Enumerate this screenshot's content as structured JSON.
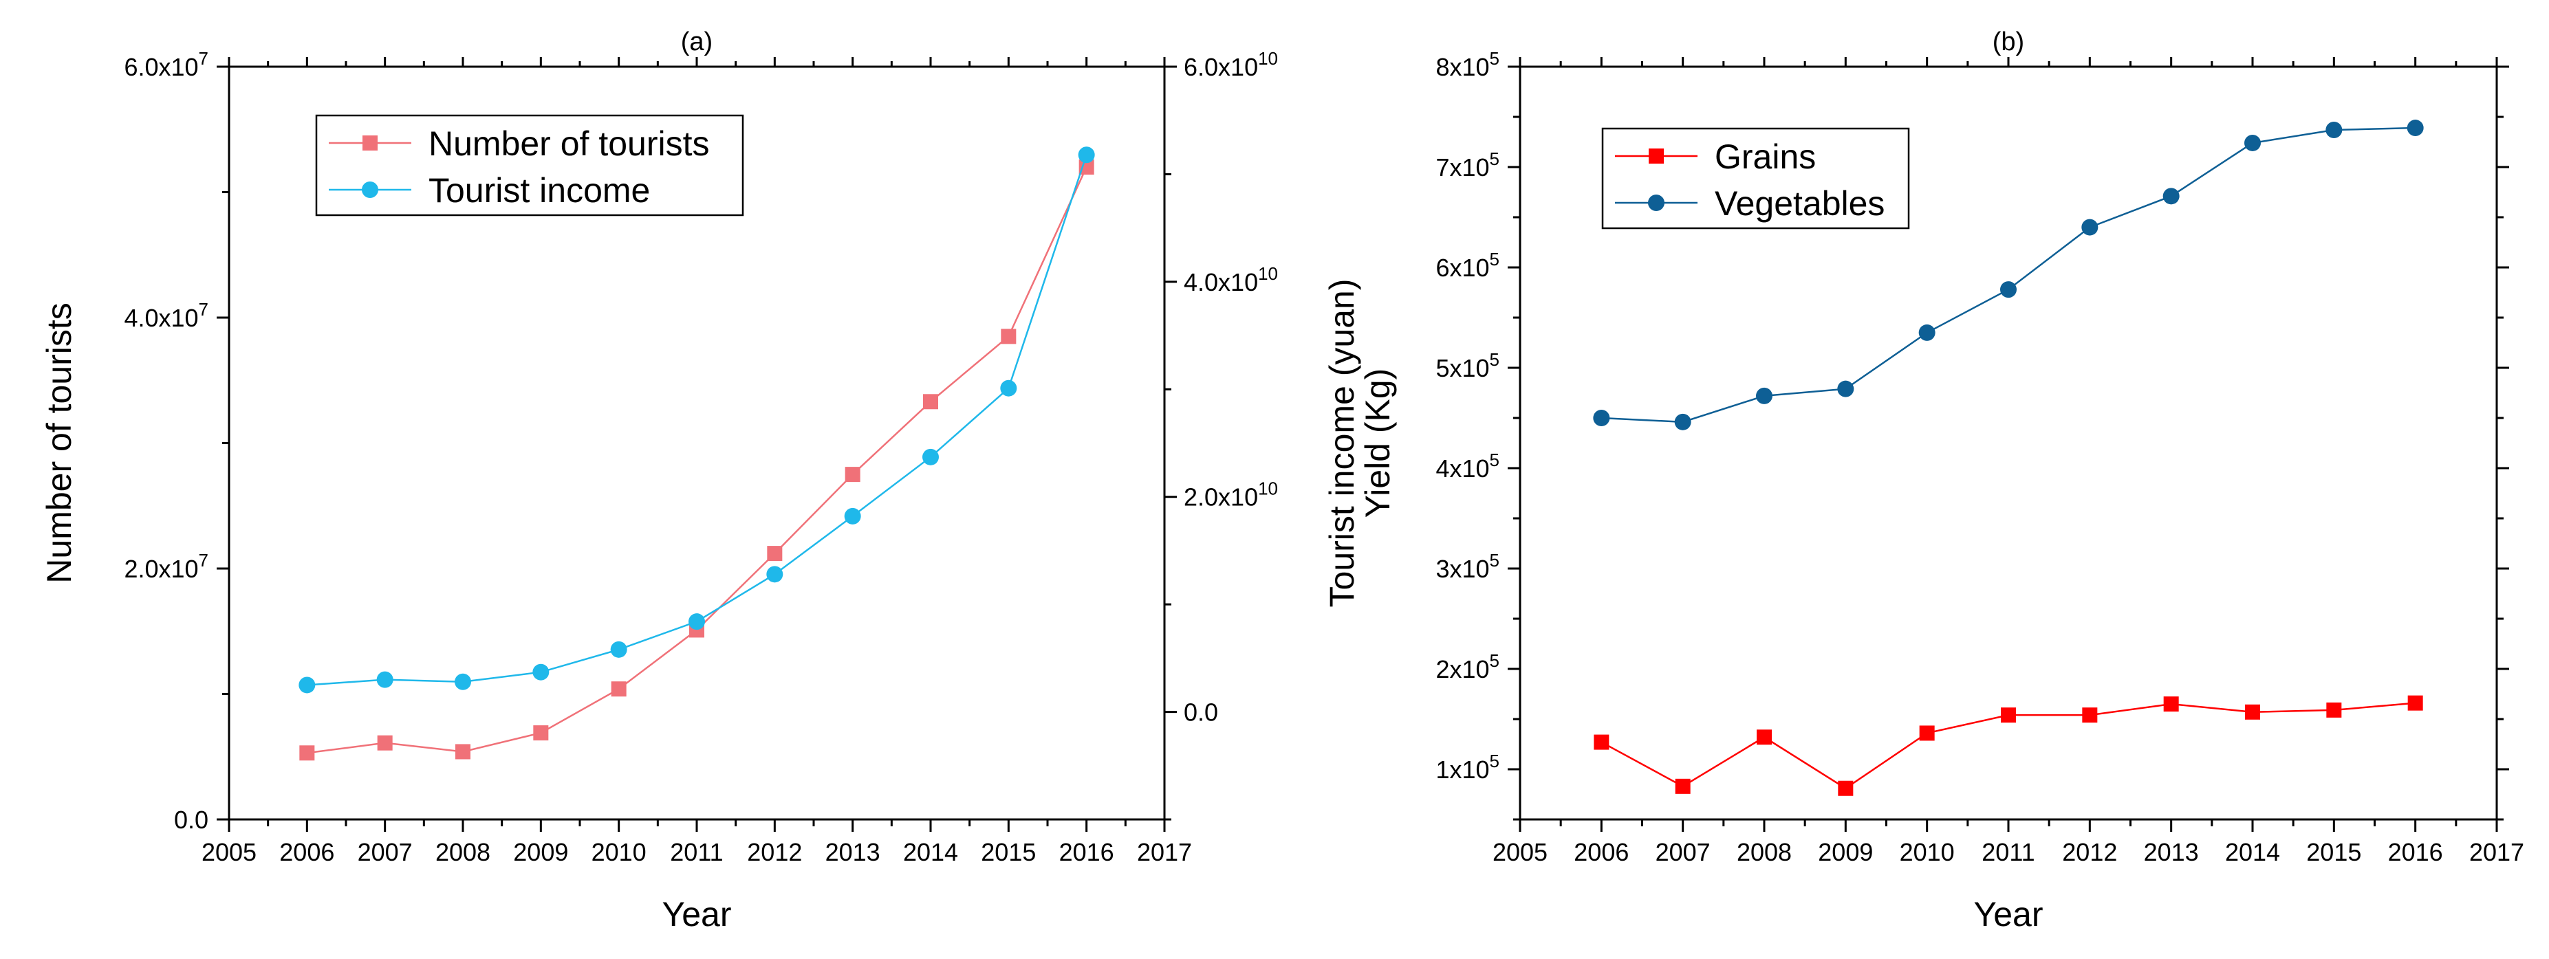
{
  "chart_data": [
    {
      "type": "line",
      "title": "(a)",
      "xlabel": "Year",
      "ylabel": "Number of tourists",
      "y2label": "Tourist income (yuan)",
      "xlim": [
        2005,
        2017
      ],
      "xticks": [
        2005,
        2006,
        2007,
        2008,
        2009,
        2010,
        2011,
        2012,
        2013,
        2014,
        2015,
        2016,
        2017
      ],
      "ylim": [
        0,
        60000000
      ],
      "yticks": [
        {
          "value": 0,
          "label": "0.0",
          "sup": ""
        },
        {
          "value": 20000000,
          "label": "2.0x10",
          "sup": "7"
        },
        {
          "value": 40000000,
          "label": "4.0x10",
          "sup": "7"
        },
        {
          "value": 60000000,
          "label": "6.0x10",
          "sup": "7"
        }
      ],
      "y2lim": [
        -10000000000,
        60000000000
      ],
      "y2ticks": [
        {
          "value": 0,
          "label": "0.0",
          "sup": ""
        },
        {
          "value": 20000000000,
          "label": "2.0x10",
          "sup": "10"
        },
        {
          "value": 40000000000,
          "label": "4.0x10",
          "sup": "10"
        },
        {
          "value": 60000000000,
          "label": "6.0x10",
          "sup": "10"
        }
      ],
      "grid": false,
      "legend_position": "top-left",
      "series": [
        {
          "name": "Number of tourists",
          "axis": "left",
          "marker": "square",
          "color": "#f07178",
          "x": [
            2006,
            2007,
            2008,
            2009,
            2010,
            2011,
            2012,
            2013,
            2014,
            2015,
            2016
          ],
          "values": [
            5300000,
            6100000,
            5400000,
            6900000,
            10400000,
            15100000,
            21200000,
            27500000,
            33300000,
            38500000,
            52000000
          ]
        },
        {
          "name": "Tourist income",
          "axis": "right",
          "marker": "circle",
          "color": "#1fb8ea",
          "x": [
            2006,
            2007,
            2008,
            2009,
            2010,
            2011,
            2012,
            2013,
            2014,
            2015,
            2016
          ],
          "values": [
            2500000000,
            3000000000,
            2800000000,
            3700000000,
            5800000000,
            8400000000,
            12800000000,
            18200000000,
            23700000000,
            30100000000,
            51800000000
          ]
        }
      ]
    },
    {
      "type": "line",
      "title": "(b)",
      "xlabel": "Year",
      "ylabel": "Yield (Kg)",
      "xlim": [
        2005,
        2017
      ],
      "xticks": [
        2005,
        2006,
        2007,
        2008,
        2009,
        2010,
        2011,
        2012,
        2013,
        2014,
        2015,
        2016,
        2017
      ],
      "ylim": [
        50000,
        800000
      ],
      "yticks": [
        {
          "value": 100000,
          "label": "1x10",
          "sup": "5"
        },
        {
          "value": 200000,
          "label": "2x10",
          "sup": "5"
        },
        {
          "value": 300000,
          "label": "3x10",
          "sup": "5"
        },
        {
          "value": 400000,
          "label": "4x10",
          "sup": "5"
        },
        {
          "value": 500000,
          "label": "5x10",
          "sup": "5"
        },
        {
          "value": 600000,
          "label": "6x10",
          "sup": "5"
        },
        {
          "value": 700000,
          "label": "7x10",
          "sup": "5"
        },
        {
          "value": 800000,
          "label": "8x10",
          "sup": "5"
        }
      ],
      "grid": false,
      "legend_position": "top-left",
      "series": [
        {
          "name": "Grains",
          "axis": "left",
          "marker": "square",
          "color": "#ff0000",
          "x": [
            2006,
            2007,
            2008,
            2009,
            2010,
            2011,
            2012,
            2013,
            2014,
            2015,
            2016
          ],
          "values": [
            127000,
            83000,
            132000,
            81000,
            136000,
            154000,
            154000,
            165000,
            157000,
            159000,
            166000
          ]
        },
        {
          "name": "Vegetables",
          "axis": "left",
          "marker": "circle",
          "color": "#0e5f95",
          "x": [
            2006,
            2007,
            2008,
            2009,
            2010,
            2011,
            2012,
            2013,
            2014,
            2015,
            2016
          ],
          "values": [
            450000,
            446000,
            472000,
            479000,
            535000,
            578000,
            640000,
            671000,
            724000,
            737000,
            739000
          ]
        }
      ]
    }
  ]
}
